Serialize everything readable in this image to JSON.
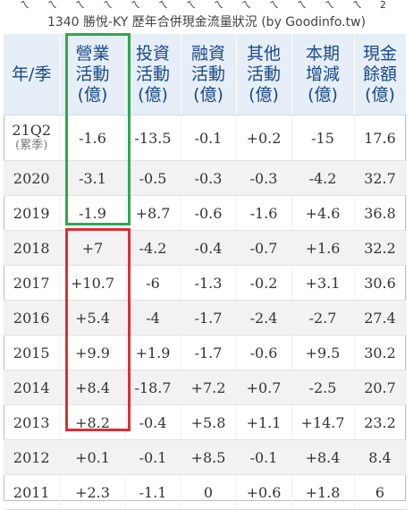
{
  "page": {
    "title": "1340 勝悅-KY 歷年合併現金流量狀況 (by Goodinfo.tw)",
    "top_strip_marks": [
      "ㄟ",
      "ㄟ",
      "ㄟ",
      "ㄟ",
      "ㄟ",
      "ㄟ",
      "ㄟ",
      "ㄟ",
      "ㄟ",
      "ㄟ",
      "ㄟ",
      "ㄟ",
      "ㄟ",
      "2"
    ]
  },
  "table": {
    "headers": [
      [
        "年/季"
      ],
      [
        "營業",
        "活動",
        "(億)"
      ],
      [
        "投資",
        "活動",
        "(億)"
      ],
      [
        "融資",
        "活動",
        "(億)"
      ],
      [
        "其他",
        "活動",
        "(億)"
      ],
      [
        "本期",
        "增減",
        "(億)"
      ],
      [
        "現金",
        "餘額",
        "(億)"
      ]
    ],
    "rows": [
      {
        "period": "21Q2",
        "sub": "(累季)",
        "values": [
          "-1.6",
          "-13.5",
          "-0.1",
          "+0.2",
          "-15",
          "17.6"
        ]
      },
      {
        "period": "2020",
        "values": [
          "-3.1",
          "-0.5",
          "-0.3",
          "-0.3",
          "-4.2",
          "32.7"
        ]
      },
      {
        "period": "2019",
        "values": [
          "-1.9",
          "+8.7",
          "-0.6",
          "-1.6",
          "+4.6",
          "36.8"
        ]
      },
      {
        "period": "2018",
        "values": [
          "+7",
          "-4.2",
          "-0.4",
          "-0.7",
          "+1.6",
          "32.2"
        ]
      },
      {
        "period": "2017",
        "values": [
          "+10.7",
          "-6",
          "-1.3",
          "-0.2",
          "+3.1",
          "30.6"
        ]
      },
      {
        "period": "2016",
        "values": [
          "+5.4",
          "-4",
          "-1.7",
          "-2.4",
          "-2.7",
          "27.4"
        ]
      },
      {
        "period": "2015",
        "values": [
          "+9.9",
          "+1.9",
          "-1.7",
          "-0.6",
          "+9.5",
          "30.2"
        ]
      },
      {
        "period": "2014",
        "values": [
          "+8.4",
          "-18.7",
          "+7.2",
          "+0.7",
          "-2.5",
          "20.7"
        ]
      },
      {
        "period": "2013",
        "values": [
          "+8.2",
          "-0.4",
          "+5.8",
          "+1.1",
          "+14.7",
          "23.2"
        ]
      },
      {
        "period": "2012",
        "values": [
          "+0.1",
          "-0.1",
          "+8.5",
          "-0.1",
          "+8.4",
          "8.4"
        ]
      },
      {
        "period": "2011",
        "values": [
          "+2.3",
          "-1.1",
          "0",
          "+0.6",
          "+1.8",
          "6"
        ]
      }
    ]
  },
  "highlights": {
    "green_box": {
      "column": "營業活動",
      "periods": [
        "21Q2",
        "2020",
        "2019"
      ],
      "color": "#2fa84f"
    },
    "red_box": {
      "column": "營業活動",
      "periods": [
        "2018",
        "2017",
        "2016",
        "2015",
        "2014",
        "2013"
      ],
      "color": "#d93039"
    }
  },
  "colors": {
    "positive": "#d6262d",
    "negative": "#2e8b2e",
    "header_bg": "#e6eef7",
    "header_text": "#1a4a8a"
  }
}
